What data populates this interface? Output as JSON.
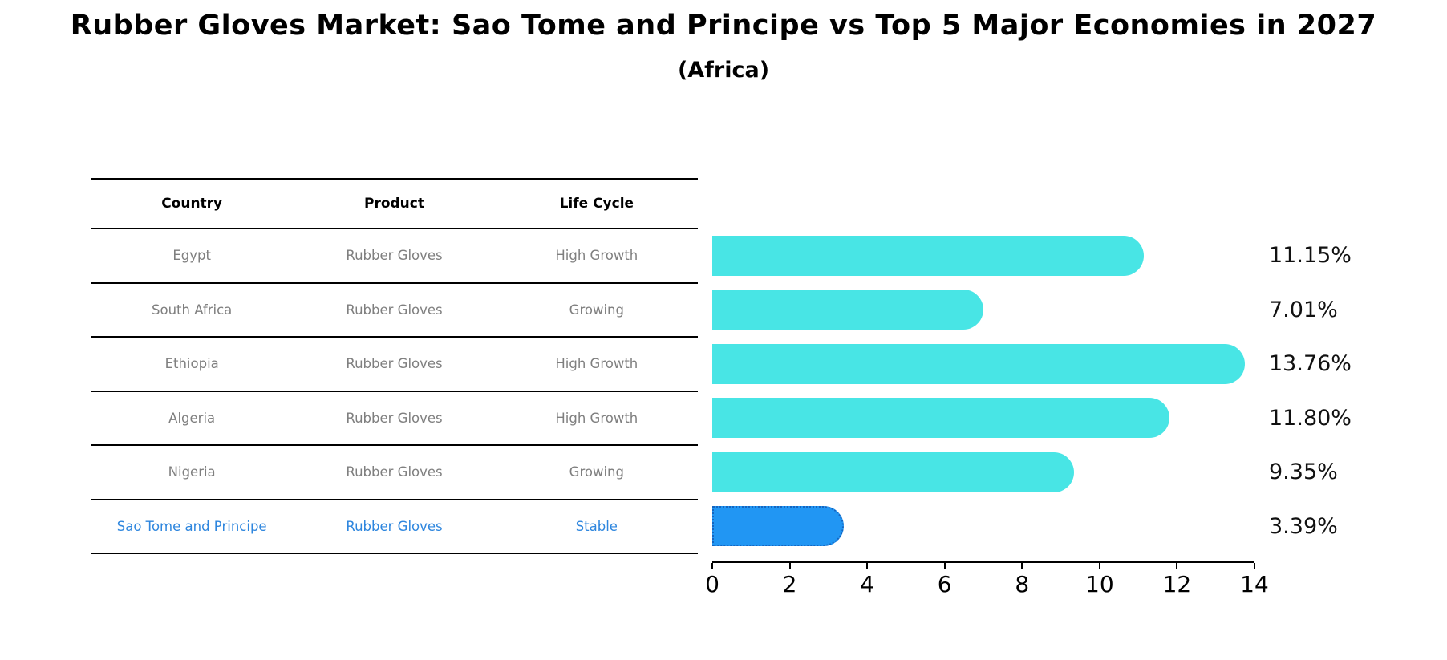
{
  "title": "Rubber Gloves Market: Sao Tome and Principe vs Top 5 Major Economies in 2027",
  "subtitle": "(Africa)",
  "table": {
    "headers": [
      "Country",
      "Product",
      "Life Cycle"
    ],
    "rows": [
      {
        "country": "Egypt",
        "product": "Rubber Gloves",
        "life_cycle": "High Growth",
        "highlight": false
      },
      {
        "country": "South Africa",
        "product": "Rubber Gloves",
        "life_cycle": "Growing",
        "highlight": false
      },
      {
        "country": "Ethiopia",
        "product": "Rubber Gloves",
        "life_cycle": "High Growth",
        "highlight": false
      },
      {
        "country": "Algeria",
        "product": "Rubber Gloves",
        "life_cycle": "High Growth",
        "highlight": false
      },
      {
        "country": "Nigeria",
        "product": "Rubber Gloves",
        "life_cycle": "Growing",
        "highlight": false
      },
      {
        "country": "Sao Tome and Principe",
        "product": "Rubber Gloves",
        "life_cycle": "Stable",
        "highlight": true
      }
    ]
  },
  "chart_data": {
    "type": "bar",
    "orientation": "horizontal",
    "title": "Rubber Gloves Market: Sao Tome and Principe vs Top 5 Major Economies in 2027",
    "subtitle": "(Africa)",
    "categories": [
      "Egypt",
      "South Africa",
      "Ethiopia",
      "Algeria",
      "Nigeria",
      "Sao Tome and Principe"
    ],
    "values": [
      11.15,
      7.01,
      13.76,
      11.8,
      9.35,
      3.39
    ],
    "value_labels": [
      "11.15%",
      "7.01%",
      "13.76%",
      "11.80%",
      "9.35%",
      "3.39%"
    ],
    "xlim": [
      0,
      14
    ],
    "x_ticks": [
      0,
      2,
      4,
      6,
      8,
      10,
      12,
      14
    ],
    "grid": false,
    "legend": false,
    "highlight_index": 5,
    "colors": {
      "bar": "#48e5e5",
      "highlight_bar": "#2196f3",
      "highlight_border": "#1565c0",
      "row_text": "#7f7f7f",
      "highlight_text": "#2e86de",
      "axis": "#000000"
    }
  }
}
